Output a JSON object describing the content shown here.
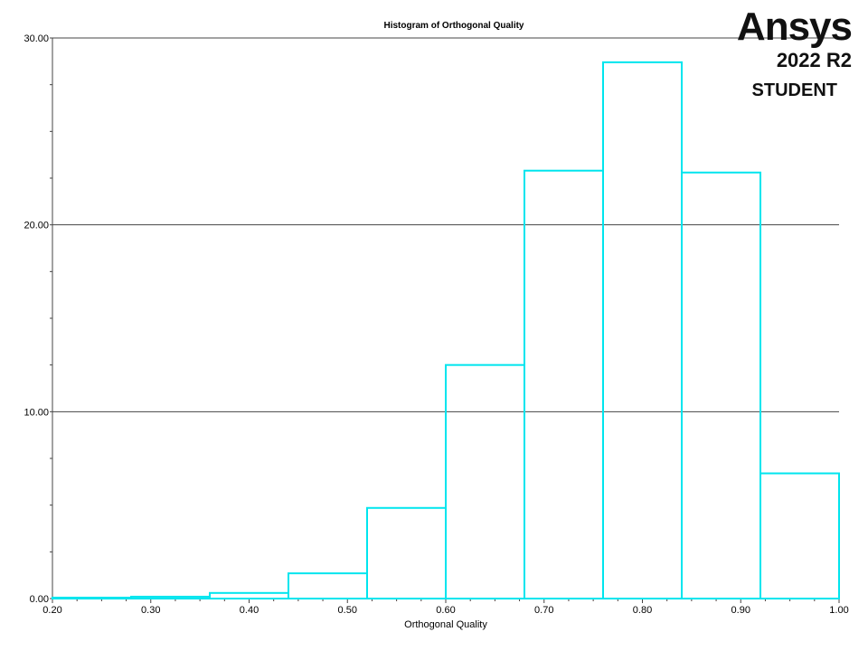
{
  "brand": {
    "name": "Ansys",
    "version": "2022 R2",
    "edition": "STUDENT"
  },
  "chart_data": {
    "type": "bar",
    "title": "Histogram of Orthogonal Quality",
    "xlabel": "Orthogonal Quality",
    "ylabel": "",
    "xlim": [
      0.2,
      1.0
    ],
    "ylim": [
      0,
      30
    ],
    "x_ticks": [
      "0.20",
      "0.30",
      "0.40",
      "0.50",
      "0.60",
      "0.70",
      "0.80",
      "0.90",
      "1.00"
    ],
    "y_ticks": [
      "0.00",
      "10.00",
      "20.00",
      "30.00"
    ],
    "grid": true,
    "bin_edges": [
      0.2,
      0.28,
      0.36,
      0.44,
      0.52,
      0.6,
      0.68,
      0.76,
      0.84,
      0.92,
      1.0
    ],
    "values": [
      0.05,
      0.1,
      0.3,
      1.35,
      4.85,
      12.5,
      22.9,
      28.7,
      22.8,
      6.7
    ],
    "bar_color": "#00e5ee"
  }
}
